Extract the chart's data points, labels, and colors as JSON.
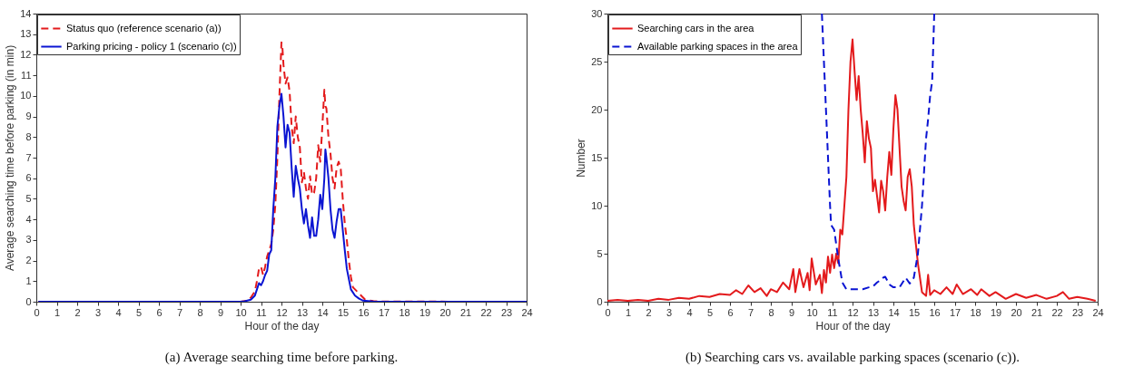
{
  "chart_data": [
    {
      "type": "line",
      "title": "(a) Average searching time before parking.",
      "xlabel": "Hour of the day",
      "ylabel": "Average searching time before parking (in min)",
      "xlim": [
        0,
        24
      ],
      "xticks": [
        0,
        1,
        2,
        3,
        4,
        5,
        6,
        7,
        8,
        9,
        10,
        11,
        12,
        13,
        14,
        15,
        16,
        17,
        18,
        19,
        20,
        21,
        22,
        23,
        24
      ],
      "ylim": [
        0,
        14
      ],
      "yticks": [
        0,
        1,
        2,
        3,
        4,
        5,
        6,
        7,
        8,
        9,
        10,
        11,
        12,
        13,
        14
      ],
      "grid": false,
      "legend": "top left",
      "series": [
        {
          "name": "Status quo (reference scenario (a))",
          "color": "#e31a1c",
          "line_style": "dashed",
          "x": [
            0.1,
            10,
            10.3,
            10.5,
            10.7,
            10.8,
            10.9,
            11.0,
            11.1,
            11.2,
            11.3,
            11.4,
            11.5,
            11.6,
            11.7,
            11.8,
            11.9,
            12.0,
            12.05,
            12.1,
            12.2,
            12.3,
            12.4,
            12.5,
            12.6,
            12.7,
            12.8,
            12.9,
            13.0,
            13.1,
            13.2,
            13.3,
            13.4,
            13.5,
            13.6,
            13.7,
            13.8,
            13.9,
            14.0,
            14.1,
            14.15,
            14.2,
            14.3,
            14.4,
            14.5,
            14.6,
            14.7,
            14.8,
            14.9,
            15.0,
            15.1,
            15.2,
            15.3,
            15.4,
            15.5,
            15.7,
            15.9,
            16.1,
            16.5,
            17,
            24
          ],
          "values": [
            0,
            0,
            0.05,
            0.2,
            0.5,
            1.0,
            1.6,
            1.7,
            1.3,
            1.7,
            2.2,
            2.5,
            2.8,
            3.5,
            4.7,
            7,
            10,
            12.6,
            12.3,
            11.5,
            10.6,
            10.9,
            10.2,
            8.5,
            7.7,
            9.0,
            8.0,
            7.5,
            5.8,
            6.3,
            5.5,
            5.0,
            6.1,
            5.2,
            5.3,
            6.0,
            7.6,
            6.8,
            8.5,
            10.3,
            9.5,
            9.4,
            8,
            7.2,
            6,
            5.5,
            6.5,
            6.8,
            6.5,
            5.0,
            3.8,
            3.0,
            2.0,
            1.2,
            0.7,
            0.5,
            0.3,
            0.1,
            0.03,
            0.01,
            0
          ]
        },
        {
          "name": "Parking pricing - policy 1 (scenario (c))",
          "color": "#0a14d2",
          "line_style": "solid",
          "x": [
            0.1,
            10,
            10.2,
            10.5,
            10.7,
            10.8,
            10.9,
            11.0,
            11.1,
            11.2,
            11.3,
            11.4,
            11.5,
            11.6,
            11.7,
            11.8,
            11.9,
            12.0,
            12.1,
            12.2,
            12.3,
            12.4,
            12.5,
            12.6,
            12.7,
            12.8,
            12.9,
            13.0,
            13.1,
            13.2,
            13.3,
            13.4,
            13.5,
            13.6,
            13.7,
            13.8,
            13.9,
            14.0,
            14.1,
            14.15,
            14.2,
            14.3,
            14.4,
            14.5,
            14.6,
            14.7,
            14.8,
            14.9,
            15.0,
            15.1,
            15.2,
            15.3,
            15.4,
            15.6,
            15.8,
            16.0,
            16.5,
            24
          ],
          "values": [
            0,
            0,
            0.02,
            0.1,
            0.3,
            0.6,
            0.9,
            0.8,
            1.0,
            1.3,
            1.5,
            2.3,
            2.5,
            4.5,
            6,
            8.5,
            9.5,
            10.1,
            9,
            7.5,
            8.6,
            8.2,
            6.5,
            5.1,
            6.6,
            6,
            5.5,
            4.5,
            3.8,
            4.5,
            3.7,
            3.1,
            4.1,
            3.2,
            3.2,
            4.0,
            5.2,
            4.5,
            6.0,
            7.4,
            7.0,
            6.0,
            4.5,
            3.5,
            3.1,
            3.9,
            4.5,
            4.5,
            3.5,
            2.5,
            1.6,
            1.1,
            0.6,
            0.3,
            0.15,
            0.05,
            0.01,
            0
          ]
        }
      ]
    },
    {
      "type": "line",
      "title": "(b) Searching cars vs. available parking spaces (scenario (c)).",
      "xlabel": "Hour of the day",
      "ylabel": "Number",
      "xlim": [
        0,
        24
      ],
      "xticks": [
        0,
        1,
        2,
        3,
        4,
        5,
        6,
        7,
        8,
        9,
        10,
        11,
        12,
        13,
        14,
        15,
        16,
        17,
        18,
        19,
        20,
        21,
        22,
        23,
        24
      ],
      "ylim": [
        0,
        30
      ],
      "yticks": [
        0,
        5,
        10,
        15,
        20,
        25,
        30
      ],
      "grid": false,
      "legend": "top left",
      "series": [
        {
          "name": "Searching cars in the area",
          "color": "#e31a1c",
          "line_style": "solid",
          "x": [
            0,
            0.5,
            1,
            1.5,
            2,
            2.5,
            3,
            3.5,
            4,
            4.5,
            5,
            5.5,
            6,
            6.3,
            6.6,
            6.9,
            7.2,
            7.5,
            7.8,
            8.0,
            8.3,
            8.6,
            8.9,
            9.1,
            9.2,
            9.4,
            9.6,
            9.8,
            9.9,
            10.0,
            10.2,
            10.4,
            10.5,
            10.6,
            10.7,
            10.8,
            10.9,
            11.0,
            11.1,
            11.2,
            11.3,
            11.4,
            11.5,
            11.6,
            11.7,
            11.8,
            11.9,
            12.0,
            12.1,
            12.2,
            12.3,
            12.4,
            12.5,
            12.6,
            12.7,
            12.8,
            12.9,
            13.0,
            13.1,
            13.2,
            13.3,
            13.4,
            13.5,
            13.6,
            13.7,
            13.8,
            13.9,
            14.0,
            14.1,
            14.2,
            14.3,
            14.4,
            14.5,
            14.6,
            14.7,
            14.8,
            14.9,
            15.0,
            15.1,
            15.2,
            15.3,
            15.4,
            15.6,
            15.7,
            15.8,
            16.0,
            16.3,
            16.6,
            16.9,
            17.1,
            17.4,
            17.8,
            18.1,
            18.3,
            18.7,
            19.0,
            19.5,
            20.0,
            20.5,
            21.0,
            21.5,
            22.0,
            22.3,
            22.6,
            23.0,
            23.5,
            23.9
          ],
          "values": [
            0.1,
            0.2,
            0.1,
            0.2,
            0.1,
            0.3,
            0.2,
            0.4,
            0.3,
            0.6,
            0.5,
            0.8,
            0.7,
            1.2,
            0.8,
            1.7,
            1.0,
            1.4,
            0.6,
            1.3,
            1.0,
            2.0,
            1.3,
            3.4,
            1.0,
            3.4,
            1.5,
            3.0,
            1.2,
            4.5,
            1.8,
            2.8,
            0.9,
            3.3,
            2.0,
            4.7,
            3.0,
            4.9,
            3.5,
            5.0,
            4.0,
            7.5,
            7.0,
            10,
            13,
            20,
            25,
            27.3,
            24,
            21,
            23.5,
            20,
            17.5,
            14.5,
            18.8,
            17,
            16,
            11.5,
            12.7,
            11,
            9.3,
            12.6,
            11.5,
            9.5,
            13,
            15.6,
            13.2,
            18,
            21.5,
            20,
            16,
            12,
            10.5,
            9.5,
            13,
            13.8,
            12,
            8,
            6,
            4,
            2.5,
            1.0,
            0.6,
            2.8,
            0.7,
            1.2,
            0.8,
            1.5,
            0.8,
            1.8,
            0.8,
            1.3,
            0.7,
            1.3,
            0.6,
            1.0,
            0.3,
            0.8,
            0.4,
            0.7,
            0.3,
            0.6,
            1.0,
            0.3,
            0.5,
            0.3,
            0.1
          ]
        },
        {
          "name": "Available parking spaces in the area",
          "color": "#0a14d2",
          "line_style": "dashed",
          "x": [
            10.5,
            10.7,
            10.9,
            10.95,
            11.1,
            11.2,
            11.3,
            11.5,
            11.7,
            12.0,
            12.5,
            12.8,
            13.0,
            13.2,
            13.4,
            13.5,
            13.6,
            13.8,
            14.0,
            14.3,
            14.6,
            14.8,
            15.0,
            15.2,
            15.4,
            15.6,
            15.7,
            15.8,
            15.9,
            16.0
          ],
          "values": [
            30,
            20,
            10,
            8,
            7.5,
            6,
            4.5,
            2,
            1.3,
            1.3,
            1.3,
            1.5,
            1.6,
            2.0,
            2.3,
            2.5,
            2.6,
            1.8,
            1.5,
            1.5,
            2.5,
            1.9,
            2.5,
            5,
            10,
            17,
            19,
            21.5,
            23,
            30
          ]
        }
      ]
    }
  ]
}
